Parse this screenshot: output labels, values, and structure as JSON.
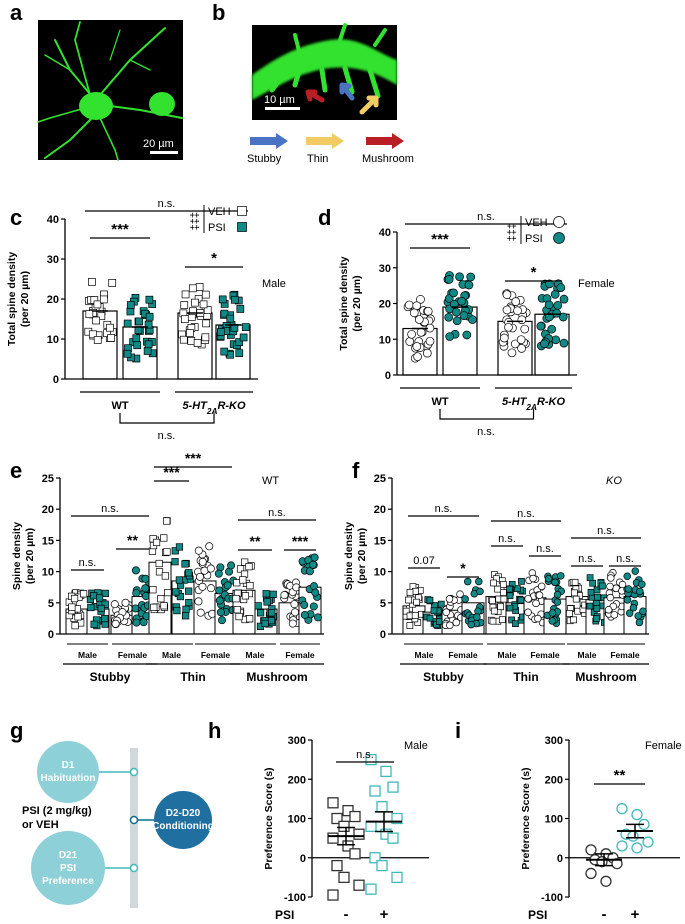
{
  "colors": {
    "teal": "#118a87",
    "teal_light": "#40b9bb",
    "green": "#33e22f",
    "black": "#000000"
  },
  "panels": {
    "a": {
      "letter": "a",
      "scale_label": "20 µm"
    },
    "b": {
      "letter": "b",
      "scale_label": "10 µm",
      "legend": [
        {
          "label": "Stubby",
          "color": "#4a73c4"
        },
        {
          "label": "Thin",
          "color": "#f2cc62"
        },
        {
          "label": "Mushroom",
          "color": "#b81e24"
        }
      ]
    },
    "c": {
      "letter": "c"
    },
    "d": {
      "letter": "d"
    },
    "e": {
      "letter": "e"
    },
    "f": {
      "letter": "f"
    },
    "g": {
      "letter": "g"
    },
    "h": {
      "letter": "h"
    },
    "i": {
      "letter": "i"
    }
  },
  "chart_data": [
    {
      "id": "c",
      "type": "bar",
      "sex_label": "Male",
      "ylabel": [
        "Total spine density",
        "(per 20 µm)"
      ],
      "ylim": [
        0,
        40
      ],
      "yticks": [
        0,
        10,
        20,
        30,
        40
      ],
      "groups": [
        "WT",
        "5-HT2AR-KO"
      ],
      "series": [
        {
          "name": "VEH",
          "values": [
            17,
            16.5
          ]
        },
        {
          "name": "PSI",
          "values": [
            13,
            13.5
          ]
        }
      ],
      "legend": {
        "crosses": "‡‡‡",
        "items": [
          "VEH",
          "PSI"
        ]
      },
      "annotations": {
        "top": "n.s.",
        "wt": "***",
        "ko": "*",
        "bottom": "n.s."
      }
    },
    {
      "id": "d",
      "type": "bar",
      "sex_label": "Female",
      "ylabel": [
        "Total spine density",
        "(per 20 µm)"
      ],
      "ylim": [
        0,
        40
      ],
      "yticks": [
        0,
        10,
        20,
        30,
        40
      ],
      "groups": [
        "WT",
        "5-HT2AR-KO"
      ],
      "series": [
        {
          "name": "VEH",
          "values": [
            13,
            15
          ]
        },
        {
          "name": "PSI",
          "values": [
            19,
            17
          ]
        }
      ],
      "legend": {
        "crosses": "‡‡‡",
        "items": [
          "VEH",
          "PSI"
        ]
      },
      "annotations": {
        "top": "n.s.",
        "wt": "***",
        "ko": "*",
        "bottom": "n.s."
      }
    },
    {
      "id": "e",
      "type": "bar",
      "genotype": "WT",
      "ylabel": [
        "Spine density",
        "(per 20 µm)"
      ],
      "ylim": [
        0,
        25
      ],
      "yticks": [
        0,
        5,
        10,
        15,
        20,
        25
      ],
      "categories": [
        "Stubby",
        "Thin",
        "Mushroom"
      ],
      "sexes": [
        "Male",
        "Female"
      ],
      "values": {
        "Stubby": {
          "Male": [
            4,
            4
          ],
          "Female": [
            3,
            6
          ]
        },
        "Thin": {
          "Male": [
            11.5,
            8.5
          ],
          "Female": [
            8.5,
            6.5
          ]
        },
        "Mushroom": {
          "Male": [
            7,
            4
          ],
          "Female": [
            5,
            7.5
          ]
        }
      },
      "annotations": {
        "stubby_top": "n.s.",
        "stubby_male": "n.s.",
        "stubby_female": "**",
        "thin_top": "***",
        "thin_mid": "***",
        "mushroom_top": "n.s.",
        "mushroom_male": "**",
        "mushroom_female": "***"
      }
    },
    {
      "id": "f",
      "type": "bar",
      "genotype": "KO",
      "ylabel": [
        "Spine density",
        "(per 20 µm)"
      ],
      "ylim": [
        0,
        25
      ],
      "yticks": [
        0,
        5,
        10,
        15,
        20,
        25
      ],
      "categories": [
        "Stubby",
        "Thin",
        "Mushroom"
      ],
      "sexes": [
        "Male",
        "Female"
      ],
      "values": {
        "Stubby": {
          "Male": [
            4.5,
            3.5
          ],
          "Female": [
            3.8,
            5
          ]
        },
        "Thin": {
          "Male": [
            6,
            5
          ],
          "Female": [
            5.8,
            5.6
          ]
        },
        "Mushroom": {
          "Male": [
            6,
            5.5
          ],
          "Female": [
            5.8,
            6
          ]
        }
      },
      "annotations": {
        "stubby_top": "n.s.",
        "stubby_male": "0.07",
        "stubby_female": "*",
        "thin_top": "n.s.",
        "thin_male": "n.s.",
        "thin_female": "n.s.",
        "mushroom_top": "n.s.",
        "mushroom_male": "n.s.",
        "mushroom_female": "n.s."
      }
    },
    {
      "id": "h",
      "type": "scatter",
      "sex_label": "Male",
      "ylabel": "Preference Score (s)",
      "ylim": [
        -100,
        300
      ],
      "yticks": [
        -100,
        0,
        100,
        200,
        300
      ],
      "xlabel": "PSI",
      "groups": [
        "-",
        "+"
      ],
      "means": [
        55,
        92
      ],
      "sems": [
        22,
        25
      ],
      "points": {
        "-": [
          140,
          120,
          105,
          100,
          80,
          60,
          50,
          30,
          10,
          -20,
          -50,
          -70,
          -95
        ],
        "+": [
          250,
          220,
          180,
          170,
          130,
          100,
          80,
          60,
          50,
          0,
          -20,
          -50,
          -80
        ]
      },
      "annotations": {
        "sig": "n.s."
      }
    },
    {
      "id": "i",
      "type": "scatter",
      "sex_label": "Female",
      "ylabel": "Preference Score (s)",
      "ylim": [
        -100,
        300
      ],
      "yticks": [
        -100,
        0,
        100,
        200,
        300
      ],
      "xlabel": "PSI",
      "groups": [
        "-",
        "+"
      ],
      "means": [
        -5,
        68
      ],
      "sems": [
        15,
        17
      ],
      "points": {
        "-": [
          20,
          10,
          0,
          -5,
          -10,
          -15,
          -40,
          -60
        ],
        "+": [
          125,
          110,
          85,
          60,
          55,
          40,
          30,
          25
        ]
      },
      "annotations": {
        "sig": "**"
      }
    }
  ],
  "timeline": {
    "steps": [
      {
        "line1": "D1",
        "line2": "Habituation"
      },
      {
        "line1": "D2-D20",
        "line2": "Conditioning"
      },
      {
        "line1": "D21",
        "line2": "PSI",
        "line3": "Preference"
      }
    ],
    "treatment_line1": "PSI (2 mg/kg)",
    "treatment_line2": "or VEH"
  },
  "labels": {
    "wt": "WT",
    "ko": "5-HT2AR-KO",
    "male": "Male",
    "female": "Female",
    "stubby": "Stubby",
    "thin": "Thin",
    "mushroom": "Mushroom"
  }
}
